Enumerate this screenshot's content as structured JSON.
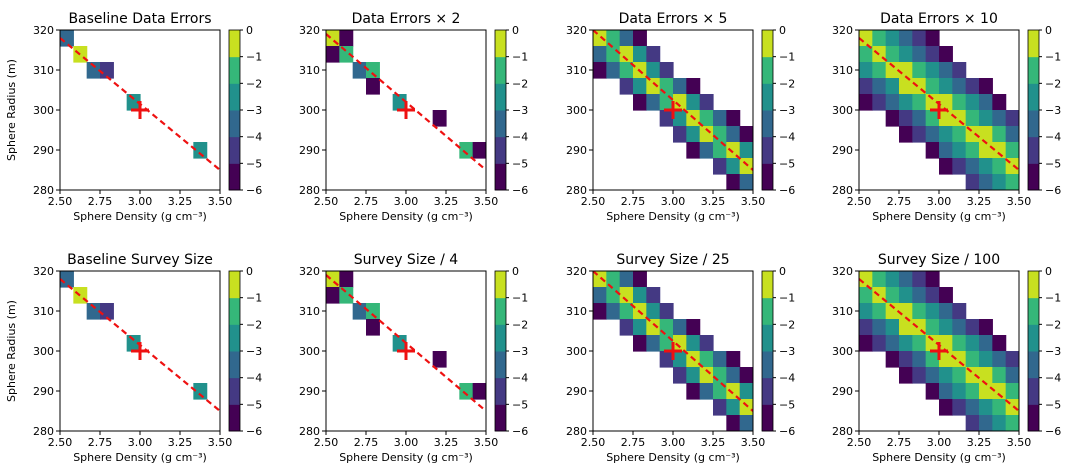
{
  "colors": {
    "levels": [
      "#440154",
      "#443983",
      "#31688e",
      "#21918c",
      "#35b779",
      "#c8e020"
    ],
    "truth_marker": "#ee1111",
    "trend_line": "#ee1111"
  },
  "panel_titles": [
    "Baseline Data Errors",
    "Data Errors × 2",
    "Data Errors × 5",
    "Data Errors × 10",
    "Baseline Survey Size",
    "Survey Size / 4",
    "Survey Size / 25",
    "Survey Size / 100"
  ],
  "xlabel": "Sphere Density (g cm⁻³)",
  "ylabel": "Sphere Radius (m)",
  "chart_data": [
    {
      "type": "heatmap",
      "title": "Baseline Data Errors",
      "xlabel": "Sphere Density (g cm⁻³)",
      "ylabel": "Sphere Radius (m)",
      "xlim": [
        2.5,
        3.5
      ],
      "ylim": [
        280,
        320
      ],
      "x_ticks": [
        "2.50",
        "2.75",
        "3.00",
        "3.25",
        "3.50"
      ],
      "y_ticks": [
        "280",
        "290",
        "300",
        "310",
        "320"
      ],
      "colorbar_ticks": [
        "0",
        "−1",
        "−2",
        "−3",
        "−4",
        "−5",
        "−6"
      ],
      "truth": {
        "x": 3.0,
        "y": 300
      },
      "trend_line": {
        "x": [
          2.5,
          3.5
        ],
        "y": [
          318,
          285
        ]
      },
      "spread_level": 0
    },
    {
      "type": "heatmap",
      "title": "Data Errors × 2",
      "xlabel": "Sphere Density (g cm⁻³)",
      "ylabel": "",
      "xlim": [
        2.5,
        3.5
      ],
      "ylim": [
        280,
        320
      ],
      "x_ticks": [
        "2.50",
        "2.75",
        "3.00",
        "3.25",
        "3.50"
      ],
      "y_ticks": [
        "280",
        "290",
        "300",
        "310",
        "320"
      ],
      "colorbar_ticks": [
        "0",
        "−1",
        "−2",
        "−3",
        "−4",
        "−5",
        "−6"
      ],
      "truth": {
        "x": 3.0,
        "y": 300
      },
      "trend_line": {
        "x": [
          2.5,
          3.5
        ],
        "y": [
          319,
          285
        ]
      },
      "spread_level": 1
    },
    {
      "type": "heatmap",
      "title": "Data Errors × 5",
      "xlabel": "Sphere Density (g cm⁻³)",
      "ylabel": "",
      "xlim": [
        2.5,
        3.5
      ],
      "ylim": [
        280,
        320
      ],
      "x_ticks": [
        "2.50",
        "2.75",
        "3.00",
        "3.25",
        "3.50"
      ],
      "y_ticks": [
        "280",
        "290",
        "300",
        "310",
        "320"
      ],
      "colorbar_ticks": [
        "0",
        "−1",
        "−2",
        "−3",
        "−4",
        "−5",
        "−6"
      ],
      "truth": {
        "x": 3.0,
        "y": 300
      },
      "trend_line": {
        "x": [
          2.5,
          3.5
        ],
        "y": [
          320,
          285
        ]
      },
      "spread_level": 2
    },
    {
      "type": "heatmap",
      "title": "Data Errors × 10",
      "xlabel": "Sphere Density (g cm⁻³)",
      "ylabel": "",
      "xlim": [
        2.5,
        3.5
      ],
      "ylim": [
        280,
        320
      ],
      "x_ticks": [
        "2.50",
        "2.75",
        "3.00",
        "3.25",
        "3.50"
      ],
      "y_ticks": [
        "280",
        "290",
        "300",
        "310",
        "320"
      ],
      "colorbar_ticks": [
        "0",
        "−1",
        "−2",
        "−3",
        "−4",
        "−5",
        "−6"
      ],
      "truth": {
        "x": 3.0,
        "y": 300
      },
      "trend_line": {
        "x": [
          2.5,
          3.5
        ],
        "y": [
          318,
          285
        ]
      },
      "spread_level": 3
    },
    {
      "type": "heatmap",
      "title": "Baseline Survey Size",
      "xlabel": "Sphere Density (g cm⁻³)",
      "ylabel": "Sphere Radius (m)",
      "xlim": [
        2.5,
        3.5
      ],
      "ylim": [
        280,
        320
      ],
      "x_ticks": [
        "2.50",
        "2.75",
        "3.00",
        "3.25",
        "3.50"
      ],
      "y_ticks": [
        "280",
        "290",
        "300",
        "310",
        "320"
      ],
      "colorbar_ticks": [
        "0",
        "−1",
        "−2",
        "−3",
        "−4",
        "−5",
        "−6"
      ],
      "truth": {
        "x": 3.0,
        "y": 300
      },
      "trend_line": {
        "x": [
          2.5,
          3.5
        ],
        "y": [
          318,
          285
        ]
      },
      "spread_level": 0
    },
    {
      "type": "heatmap",
      "title": "Survey Size / 4",
      "xlabel": "Sphere Density (g cm⁻³)",
      "ylabel": "",
      "xlim": [
        2.5,
        3.5
      ],
      "ylim": [
        280,
        320
      ],
      "x_ticks": [
        "2.50",
        "2.75",
        "3.00",
        "3.25",
        "3.50"
      ],
      "y_ticks": [
        "280",
        "290",
        "300",
        "310",
        "320"
      ],
      "colorbar_ticks": [
        "0",
        "−1",
        "−2",
        "−3",
        "−4",
        "−5",
        "−6"
      ],
      "truth": {
        "x": 3.0,
        "y": 300
      },
      "trend_line": {
        "x": [
          2.5,
          3.5
        ],
        "y": [
          319,
          285
        ]
      },
      "spread_level": 1
    },
    {
      "type": "heatmap",
      "title": "Survey Size / 25",
      "xlabel": "Sphere Density (g cm⁻³)",
      "ylabel": "",
      "xlim": [
        2.5,
        3.5
      ],
      "ylim": [
        280,
        320
      ],
      "x_ticks": [
        "2.50",
        "2.75",
        "3.00",
        "3.25",
        "3.50"
      ],
      "y_ticks": [
        "280",
        "290",
        "300",
        "310",
        "320"
      ],
      "colorbar_ticks": [
        "0",
        "−1",
        "−2",
        "−3",
        "−4",
        "−5",
        "−6"
      ],
      "truth": {
        "x": 3.0,
        "y": 300
      },
      "trend_line": {
        "x": [
          2.5,
          3.5
        ],
        "y": [
          320,
          285
        ]
      },
      "spread_level": 2
    },
    {
      "type": "heatmap",
      "title": "Survey Size / 100",
      "xlabel": "Sphere Density (g cm⁻³)",
      "ylabel": "",
      "xlim": [
        2.5,
        3.5
      ],
      "ylim": [
        280,
        320
      ],
      "x_ticks": [
        "2.50",
        "2.75",
        "3.00",
        "3.25",
        "3.50"
      ],
      "y_ticks": [
        "280",
        "290",
        "300",
        "310",
        "320"
      ],
      "colorbar_ticks": [
        "0",
        "−1",
        "−2",
        "−3",
        "−4",
        "−5",
        "−6"
      ],
      "truth": {
        "x": 3.0,
        "y": 300
      },
      "trend_line": {
        "x": [
          2.5,
          3.5
        ],
        "y": [
          318,
          285
        ]
      },
      "spread_level": 3
    }
  ]
}
